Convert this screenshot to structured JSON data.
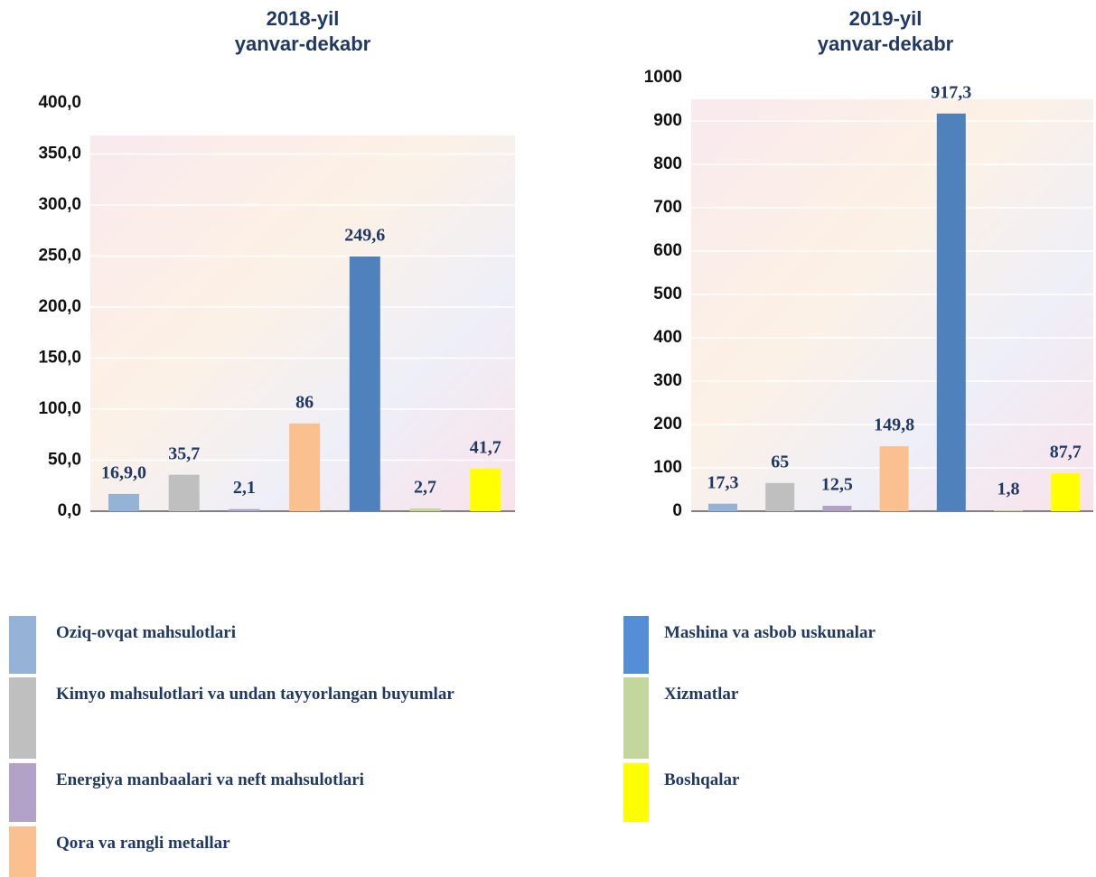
{
  "chart_data": [
    {
      "type": "bar",
      "title": [
        "2018-yil",
        "yanvar-dekabr"
      ],
      "categories": [
        null,
        null,
        null,
        null,
        null,
        null,
        null
      ],
      "values": [
        16.9,
        35.7,
        2.1,
        86,
        249.6,
        2.7,
        41.7
      ],
      "value_labels": [
        "16,9,0",
        "35,7",
        "2,1",
        "86",
        "249,6",
        "2,7",
        "41,7"
      ],
      "colors": [
        "#95b3d7",
        "#bfbfbf",
        "#b3a2c7",
        "#fac090",
        "#4f81bd",
        "#c3d69b",
        "#ffff00"
      ],
      "ylim": [
        0,
        400
      ],
      "yticks": [
        {
          "value": 0,
          "label": "0,0"
        },
        {
          "value": 50,
          "label": "50,0"
        },
        {
          "value": 100,
          "label": "100,0"
        },
        {
          "value": 150,
          "label": "150,0"
        },
        {
          "value": 200,
          "label": "200,0"
        },
        {
          "value": 250,
          "label": "250,0"
        },
        {
          "value": 300,
          "label": "300,0"
        },
        {
          "value": 350,
          "label": "350,0"
        },
        {
          "value": 400,
          "label": "400,0"
        }
      ],
      "grid": true
    },
    {
      "type": "bar",
      "title": [
        "2019-yil",
        "yanvar-dekabr"
      ],
      "categories": [
        null,
        null,
        null,
        null,
        null,
        null,
        null
      ],
      "values": [
        17.3,
        65,
        12.5,
        149.8,
        917.3,
        1.8,
        87.7
      ],
      "value_labels": [
        "17,3",
        "65",
        "12,5",
        "149,8",
        "917,3",
        "1,8",
        "87,7"
      ],
      "colors": [
        "#95b3d7",
        "#bfbfbf",
        "#b3a2c7",
        "#fac090",
        "#4f81bd",
        "#c3d69b",
        "#ffff00"
      ],
      "ylim": [
        0,
        1000
      ],
      "yticks": [
        0,
        100,
        200,
        300,
        400,
        500,
        600,
        700,
        800,
        900,
        1000
      ],
      "grid": true
    }
  ],
  "legend": {
    "labels": [
      "Oziq-ovqat mahsulotlari",
      "Kimyo mahsulotlari va undan tayyorlangan buyumlar",
      "Energiya manbaalari va neft mahsulotlari",
      "Qora va rangli metallar",
      "Mashina va asbob uskunalar",
      "Xizmatlar",
      "Boshqalar"
    ],
    "colors": [
      "#95b3d7",
      "#bfbfbf",
      "#b3a2c7",
      "#fac090",
      "#558ed5",
      "#c3d69b",
      "#ffff00"
    ]
  }
}
